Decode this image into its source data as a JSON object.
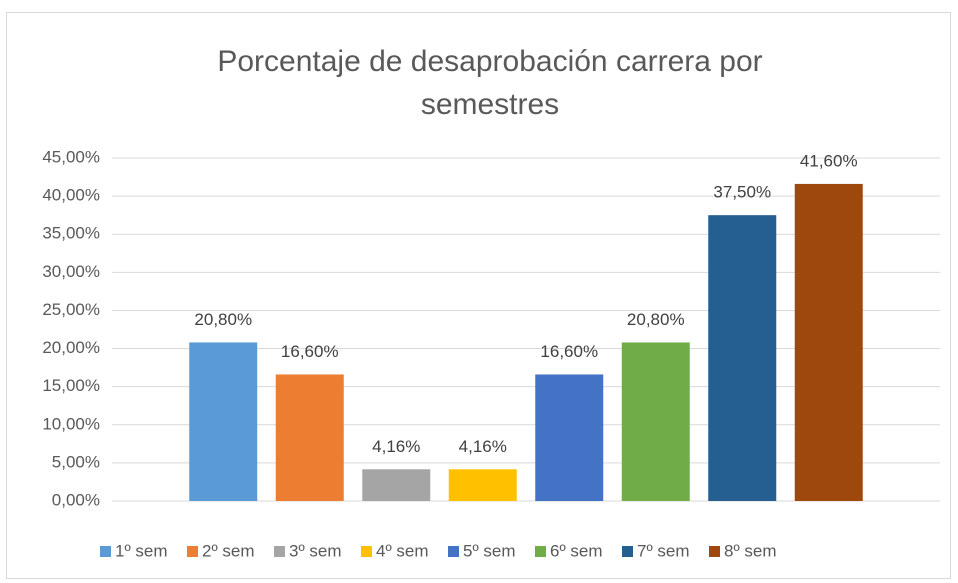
{
  "chart_data": {
    "type": "bar",
    "title": "Porcentaje de desaprobación carrera por semestres",
    "categories": [
      null
    ],
    "series": [
      {
        "name": "1º sem",
        "color": "#5b9bd5",
        "values": [
          20.8
        ],
        "value_labels": [
          "20,80%"
        ]
      },
      {
        "name": "2º sem",
        "color": "#ed7d31",
        "values": [
          16.6
        ],
        "value_labels": [
          "16,60%"
        ]
      },
      {
        "name": "3º sem",
        "color": "#a5a5a5",
        "values": [
          4.16
        ],
        "value_labels": [
          "4,16%"
        ]
      },
      {
        "name": "4º sem",
        "color": "#ffc000",
        "values": [
          4.16
        ],
        "value_labels": [
          "4,16%"
        ]
      },
      {
        "name": "5º sem",
        "color": "#4472c4",
        "values": [
          16.6
        ],
        "value_labels": [
          "16,60%"
        ]
      },
      {
        "name": "6º sem",
        "color": "#70ad47",
        "values": [
          20.8
        ],
        "value_labels": [
          "20,80%"
        ]
      },
      {
        "name": "7º sem",
        "color": "#255e91",
        "values": [
          37.5
        ],
        "value_labels": [
          "37,50%"
        ]
      },
      {
        "name": "8º sem",
        "color": "#9e480e",
        "values": [
          41.6
        ],
        "value_labels": [
          "41,60%"
        ]
      }
    ],
    "ylim": [
      0,
      45
    ],
    "yticks": [
      {
        "value": 0,
        "label": "0,00%"
      },
      {
        "value": 5,
        "label": "5,00%"
      },
      {
        "value": 10,
        "label": "10,00%"
      },
      {
        "value": 15,
        "label": "15,00%"
      },
      {
        "value": 20,
        "label": "20,00%"
      },
      {
        "value": 25,
        "label": "25,00%"
      },
      {
        "value": 30,
        "label": "30,00%"
      },
      {
        "value": 35,
        "label": "35,00%"
      },
      {
        "value": 40,
        "label": "40,00%"
      },
      {
        "value": 45,
        "label": "45,00%"
      }
    ],
    "grid": true,
    "legend": "bottom"
  }
}
